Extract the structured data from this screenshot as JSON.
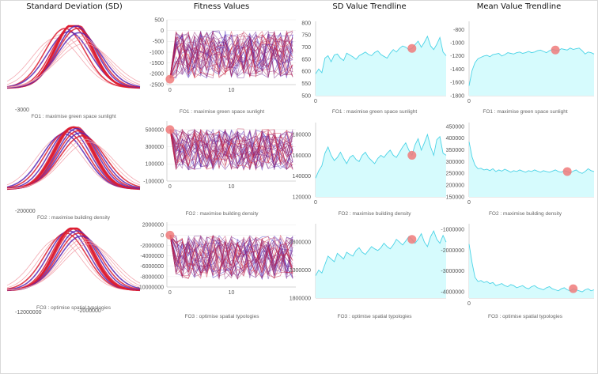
{
  "headers": [
    "Standard Deviation (SD)",
    "Fitness Values",
    "SD Value Trendline",
    "Mean Value Trendline"
  ],
  "rows": [
    {
      "objective": "FO1 : maximise green space sunlight",
      "sd": {
        "axis_label": "-3000",
        "mean_offsets": [
          -0.45,
          -0.32,
          -0.22,
          -0.12,
          -0.05,
          0.0,
          0.03,
          0.07,
          0.1,
          0.14,
          0.18,
          0.22,
          0.28
        ],
        "sigmas": [
          0.62,
          0.58,
          0.52,
          0.55,
          0.5,
          0.48,
          0.47,
          0.5,
          0.52,
          0.56,
          0.6,
          0.64,
          0.7
        ],
        "highlight_index": 5
      },
      "fitness": {
        "yticks": [
          "500",
          "0",
          "-500",
          "-1000",
          "-1500",
          "-2000",
          "-2500"
        ],
        "yrange": [
          -2500,
          500
        ],
        "xticks": [
          "0",
          "10"
        ],
        "xtick_values": [
          0,
          10
        ],
        "xrange": [
          -0.5,
          20.5
        ],
        "xmax": 20,
        "series_count": 36,
        "init_value": -2200,
        "ymin": -2200,
        "ymax": 0,
        "marker": [
          0,
          -2250
        ]
      },
      "sd_trend": {
        "yticks": [
          "800",
          "750",
          "700",
          "650",
          "600",
          "550",
          "500"
        ],
        "ytick_values": [
          800,
          750,
          700,
          650,
          600,
          550,
          500
        ],
        "yrange": [
          500,
          800
        ],
        "xticks": [
          "0"
        ],
        "values": [
          590,
          610,
          595,
          655,
          665,
          640,
          668,
          672,
          655,
          645,
          675,
          668,
          660,
          650,
          665,
          672,
          680,
          670,
          665,
          678,
          685,
          670,
          662,
          655,
          675,
          690,
          680,
          695,
          705,
          700,
          690,
          695,
          710,
          725,
          700,
          720,
          745,
          705,
          690,
          712,
          740,
          680,
          665
        ],
        "marker_index": 31
      },
      "mean_trend": {
        "yticks": [
          "-800",
          "-1000",
          "-1200",
          "-1400",
          "-1600",
          "-1800"
        ],
        "ytick_values": [
          -800,
          -1000,
          -1200,
          -1400,
          -1600,
          -1800
        ],
        "yrange": [
          -1800,
          -700
        ],
        "xticks": [
          "0"
        ],
        "values": [
          -1650,
          -1420,
          -1300,
          -1240,
          -1220,
          -1200,
          -1190,
          -1210,
          -1180,
          -1170,
          -1160,
          -1200,
          -1180,
          -1150,
          -1160,
          -1170,
          -1150,
          -1140,
          -1160,
          -1150,
          -1130,
          -1150,
          -1140,
          -1120,
          -1110,
          -1130,
          -1150,
          -1120,
          -1100,
          -1110,
          -1120,
          -1090,
          -1100,
          -1110,
          -1080,
          -1100,
          -1090,
          -1080,
          -1120,
          -1170,
          -1140,
          -1150,
          -1170
        ],
        "marker_index": 29
      }
    },
    {
      "objective": "FO2 : maximise building density",
      "sd": {
        "axis_label": "-200000",
        "mean_offsets": [
          -0.35,
          -0.25,
          -0.18,
          -0.1,
          -0.04,
          0.0,
          0.04,
          0.08,
          0.12,
          0.17,
          0.23,
          0.3,
          0.38
        ],
        "sigmas": [
          0.6,
          0.56,
          0.54,
          0.52,
          0.5,
          0.5,
          0.49,
          0.51,
          0.53,
          0.55,
          0.58,
          0.62,
          0.66
        ],
        "highlight_index": 5
      },
      "fitness": {
        "yticks": [
          "500000",
          "300000",
          "100000",
          "-100000"
        ],
        "yrange": [
          -100000,
          600000
        ],
        "xticks": [
          "0",
          "10"
        ],
        "xtick_values": [
          0,
          10
        ],
        "xrange": [
          -0.5,
          20.5
        ],
        "xmax": 20,
        "series_count": 36,
        "init_value": 500000,
        "ymin": 30000,
        "ymax": 510000,
        "marker": [
          0,
          500000
        ]
      },
      "sd_trend": {
        "yticks": [
          "180000",
          "160000",
          "140000",
          "120000"
        ],
        "ytick_values": [
          180000,
          160000,
          140000,
          120000
        ],
        "yrange": [
          120000,
          190000
        ],
        "xticks": [
          "0"
        ],
        "values": [
          138000,
          145000,
          150000,
          162000,
          168000,
          160000,
          155000,
          158000,
          163000,
          157000,
          152000,
          158000,
          160000,
          156000,
          154000,
          160000,
          163000,
          158000,
          155000,
          152000,
          157000,
          160000,
          158000,
          162000,
          165000,
          160000,
          158000,
          163000,
          168000,
          172000,
          165000,
          160000,
          170000,
          176000,
          165000,
          172000,
          180000,
          168000,
          160000,
          175000,
          178000,
          162000,
          160000
        ],
        "marker_index": 31
      },
      "mean_trend": {
        "yticks": [
          "450000",
          "400000",
          "350000",
          "300000",
          "250000",
          "200000",
          "150000"
        ],
        "ytick_values": [
          450000,
          400000,
          350000,
          300000,
          250000,
          200000,
          150000
        ],
        "yrange": [
          150000,
          460000
        ],
        "xticks": [
          "0"
        ],
        "values": [
          385000,
          320000,
          285000,
          270000,
          272000,
          265000,
          268000,
          262000,
          270000,
          258000,
          265000,
          260000,
          268000,
          262000,
          255000,
          262000,
          258000,
          265000,
          260000,
          255000,
          262000,
          258000,
          265000,
          260000,
          255000,
          262000,
          258000,
          255000,
          260000,
          265000,
          258000,
          255000,
          262000,
          258000,
          252000,
          260000,
          265000,
          255000,
          250000,
          258000,
          270000,
          262000,
          258000
        ],
        "marker_index": 33
      }
    },
    {
      "objective": "FO3 : optimise spatial typologies",
      "sd": {
        "axis_label": "-12000000",
        "axis_label2": "-2000000",
        "mean_offsets": [
          -0.4,
          -0.28,
          -0.2,
          -0.12,
          -0.05,
          0.0,
          0.04,
          0.09,
          0.14,
          0.2,
          0.26,
          0.33,
          0.4
        ],
        "sigmas": [
          0.6,
          0.57,
          0.54,
          0.52,
          0.5,
          0.49,
          0.5,
          0.52,
          0.54,
          0.57,
          0.6,
          0.63,
          0.67
        ],
        "highlight_index": 5
      },
      "fitness": {
        "yticks": [
          "2000000",
          "0",
          "-2000000",
          "-4000000",
          "-6000000",
          "-8000000",
          "-10000000"
        ],
        "yrange": [
          -10000000,
          2500000
        ],
        "xticks": [
          "0",
          "10"
        ],
        "xtick_values": [
          0,
          10
        ],
        "xrange": [
          -0.5,
          20.5
        ],
        "xmax": 20,
        "series_count": 36,
        "init_value": 0,
        "ymin": -8500000,
        "ymax": 0,
        "marker": [
          0,
          0
        ]
      },
      "sd_trend": {
        "yticks": [
          "2800000",
          "2300000",
          "1800000"
        ],
        "ytick_values": [
          2800000,
          2300000,
          1800000
        ],
        "yrange": [
          1800000,
          3100000
        ],
        "xticks": [],
        "values": [
          2200000,
          2300000,
          2250000,
          2400000,
          2550000,
          2500000,
          2450000,
          2600000,
          2550000,
          2500000,
          2620000,
          2580000,
          2550000,
          2650000,
          2700000,
          2620000,
          2580000,
          2650000,
          2720000,
          2680000,
          2650000,
          2700000,
          2780000,
          2720000,
          2680000,
          2750000,
          2850000,
          2800000,
          2750000,
          2820000,
          2900000,
          2850000,
          2780000,
          2850000,
          2950000,
          2800000,
          2720000,
          2900000,
          3000000,
          2850000,
          2780000,
          2920000,
          2800000
        ],
        "marker_index": 31
      },
      "mean_trend": {
        "yticks": [
          "-1000000",
          "-2000000",
          "-3000000",
          "-4000000"
        ],
        "ytick_values": [
          -1000000,
          -2000000,
          -3000000,
          -4000000
        ],
        "yrange": [
          -4300000,
          -800000
        ],
        "xticks": [
          "0"
        ],
        "values": [
          -1700000,
          -2600000,
          -3300000,
          -3500000,
          -3450000,
          -3550000,
          -3500000,
          -3600000,
          -3550000,
          -3700000,
          -3650000,
          -3600000,
          -3700000,
          -3750000,
          -3650000,
          -3700000,
          -3800000,
          -3750000,
          -3700000,
          -3800000,
          -3850000,
          -3750000,
          -3700000,
          -3800000,
          -3850000,
          -3900000,
          -3800000,
          -3750000,
          -3850000,
          -3900000,
          -3950000,
          -3850000,
          -3800000,
          -3900000,
          -3950000,
          -3850000,
          -3900000,
          -3950000,
          -4000000,
          -3900000,
          -3850000,
          -3950000,
          -3900000
        ],
        "marker_index": 35
      }
    }
  ],
  "colors": {
    "sd_red": "#dc1e32",
    "sd_purple": "#5a28b4",
    "sd_light": "#f2a0a8",
    "fitness_blue": "#3020c8",
    "fitness_red": "#d82030",
    "trend_fill": "#d6fbfd",
    "trend_line": "#4bd3e6",
    "marker": "#f07a7a",
    "axis": "#c8c8c8"
  },
  "chart_data": [
    {
      "type": "line",
      "title": "Standard Deviation (SD)",
      "description_series": "overlaid normal distribution curves per objective",
      "objectives": [
        "FO1 : maximise green space sunlight",
        "FO2 : maximise building density",
        "FO3 : optimise spatial typologies"
      ]
    },
    {
      "type": "line",
      "title": "Fitness Values",
      "objectives": [
        "FO1 : maximise green space sunlight",
        "FO2 : maximise building density",
        "FO3 : optimise spatial typologies"
      ],
      "yranges": [
        [
          -2500,
          500
        ],
        [
          -100000,
          600000
        ],
        [
          -10000000,
          2500000
        ]
      ]
    },
    {
      "type": "area",
      "title": "SD Value Trendline",
      "objectives": [
        "FO1 : maximise green space sunlight",
        "FO2 : maximise building density",
        "FO3 : optimise spatial typologies"
      ]
    },
    {
      "type": "area",
      "title": "Mean Value Trendline",
      "objectives": [
        "FO1 : maximise green space sunlight",
        "FO2 : maximise building density",
        "FO3 : optimise spatial typologies"
      ]
    }
  ]
}
